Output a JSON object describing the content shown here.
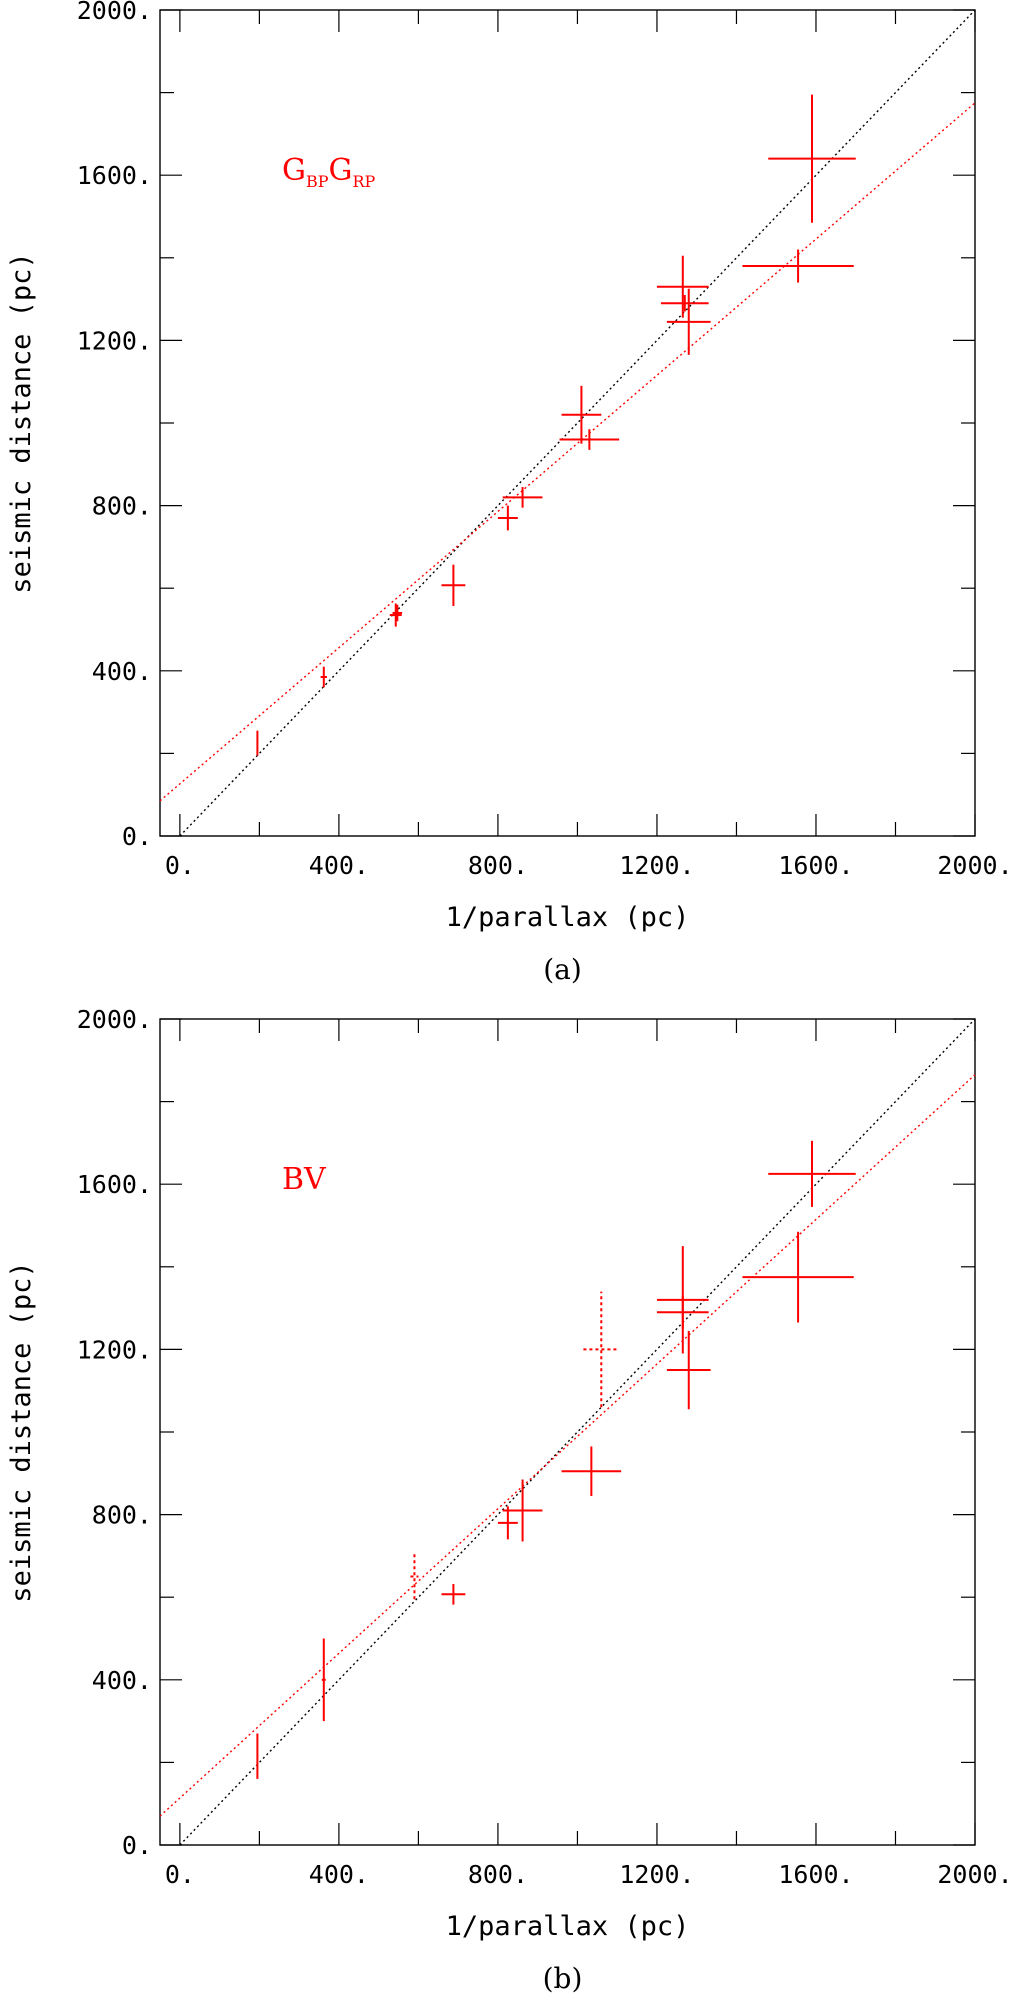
{
  "colors": {
    "data": "#ff0000",
    "identity": "#000000",
    "frame": "#000000"
  },
  "chart_data": [
    {
      "type": "scatter",
      "panel_label": "(a)",
      "series_label": {
        "main1": "G",
        "sub1": "BP",
        "main2": "G",
        "sub2": "RP"
      },
      "xlabel": "1/parallax (pc)",
      "ylabel": "seismic distance (pc)",
      "xlim": [
        -50,
        2000
      ],
      "ylim": [
        0,
        2000
      ],
      "x_ticks": [
        "0.",
        "400.",
        "800.",
        "1200.",
        "1600.",
        "2000."
      ],
      "y_ticks": [
        "0.",
        "400.",
        "800.",
        "1200.",
        "1600.",
        "2000."
      ],
      "identity_line": {
        "x1": 0,
        "y1": 0,
        "x2": 2000,
        "y2": 2000
      },
      "fit_line": {
        "x1": -50,
        "y1": 85,
        "x2": 2000,
        "y2": 1775
      },
      "points": [
        {
          "x": 195,
          "y": 225,
          "xerr": 2,
          "yerr": 30
        },
        {
          "x": 362,
          "y": 385,
          "xerr": 8,
          "yerr": 25
        },
        {
          "x": 543,
          "y": 535,
          "xerr": 15,
          "yerr": 28
        },
        {
          "x": 547,
          "y": 540,
          "xerr": 12,
          "yerr": 20
        },
        {
          "x": 688,
          "y": 607,
          "xerr": 30,
          "yerr": 50
        },
        {
          "x": 825,
          "y": 770,
          "xerr": 25,
          "yerr": 30
        },
        {
          "x": 862,
          "y": 820,
          "xerr": 50,
          "yerr": 25
        },
        {
          "x": 1010,
          "y": 1020,
          "xerr": 50,
          "yerr": 70
        },
        {
          "x": 1030,
          "y": 960,
          "xerr": 75,
          "yerr": 25
        },
        {
          "x": 1265,
          "y": 1330,
          "xerr": 65,
          "yerr": 75
        },
        {
          "x": 1270,
          "y": 1290,
          "xerr": 60,
          "yerr": 20
        },
        {
          "x": 1280,
          "y": 1245,
          "xerr": 55,
          "yerr": 80
        },
        {
          "x": 1555,
          "y": 1380,
          "xerr": 140,
          "yerr": 40
        },
        {
          "x": 1590,
          "y": 1640,
          "xerr": 110,
          "yerr": 155
        }
      ]
    },
    {
      "type": "scatter",
      "panel_label": "(b)",
      "series_label": {
        "main1": "BV"
      },
      "xlabel": "1/parallax (pc)",
      "ylabel": "seismic distance (pc)",
      "xlim": [
        -50,
        2000
      ],
      "ylim": [
        0,
        2000
      ],
      "x_ticks": [
        "0.",
        "400.",
        "800.",
        "1200.",
        "1600.",
        "2000."
      ],
      "y_ticks": [
        "0.",
        "400.",
        "800.",
        "1200.",
        "1600.",
        "2000."
      ],
      "identity_line": {
        "x1": 0,
        "y1": 0,
        "x2": 2000,
        "y2": 2000
      },
      "fit_line": {
        "x1": -50,
        "y1": 70,
        "x2": 2000,
        "y2": 1865
      },
      "points": [
        {
          "x": 195,
          "y": 215,
          "xerr": 2,
          "yerr": 55
        },
        {
          "x": 362,
          "y": 400,
          "xerr": 5,
          "yerr": 100
        },
        {
          "x": 590,
          "y": 650,
          "xerr": 10,
          "yerr": 55,
          "dashed": true
        },
        {
          "x": 688,
          "y": 607,
          "xerr": 30,
          "yerr": 25
        },
        {
          "x": 825,
          "y": 780,
          "xerr": 25,
          "yerr": 40
        },
        {
          "x": 862,
          "y": 810,
          "xerr": 50,
          "yerr": 75
        },
        {
          "x": 1035,
          "y": 905,
          "xerr": 75,
          "yerr": 60
        },
        {
          "x": 1060,
          "y": 1200,
          "xerr": 45,
          "yerr": 140,
          "dashed": true
        },
        {
          "x": 1265,
          "y": 1320,
          "xerr": 65,
          "yerr": 130
        },
        {
          "x": 1265,
          "y": 1290,
          "xerr": 65,
          "yerr": 40
        },
        {
          "x": 1280,
          "y": 1150,
          "xerr": 55,
          "yerr": 95
        },
        {
          "x": 1555,
          "y": 1375,
          "xerr": 140,
          "yerr": 110
        },
        {
          "x": 1590,
          "y": 1625,
          "xerr": 110,
          "yerr": 80
        }
      ]
    }
  ]
}
